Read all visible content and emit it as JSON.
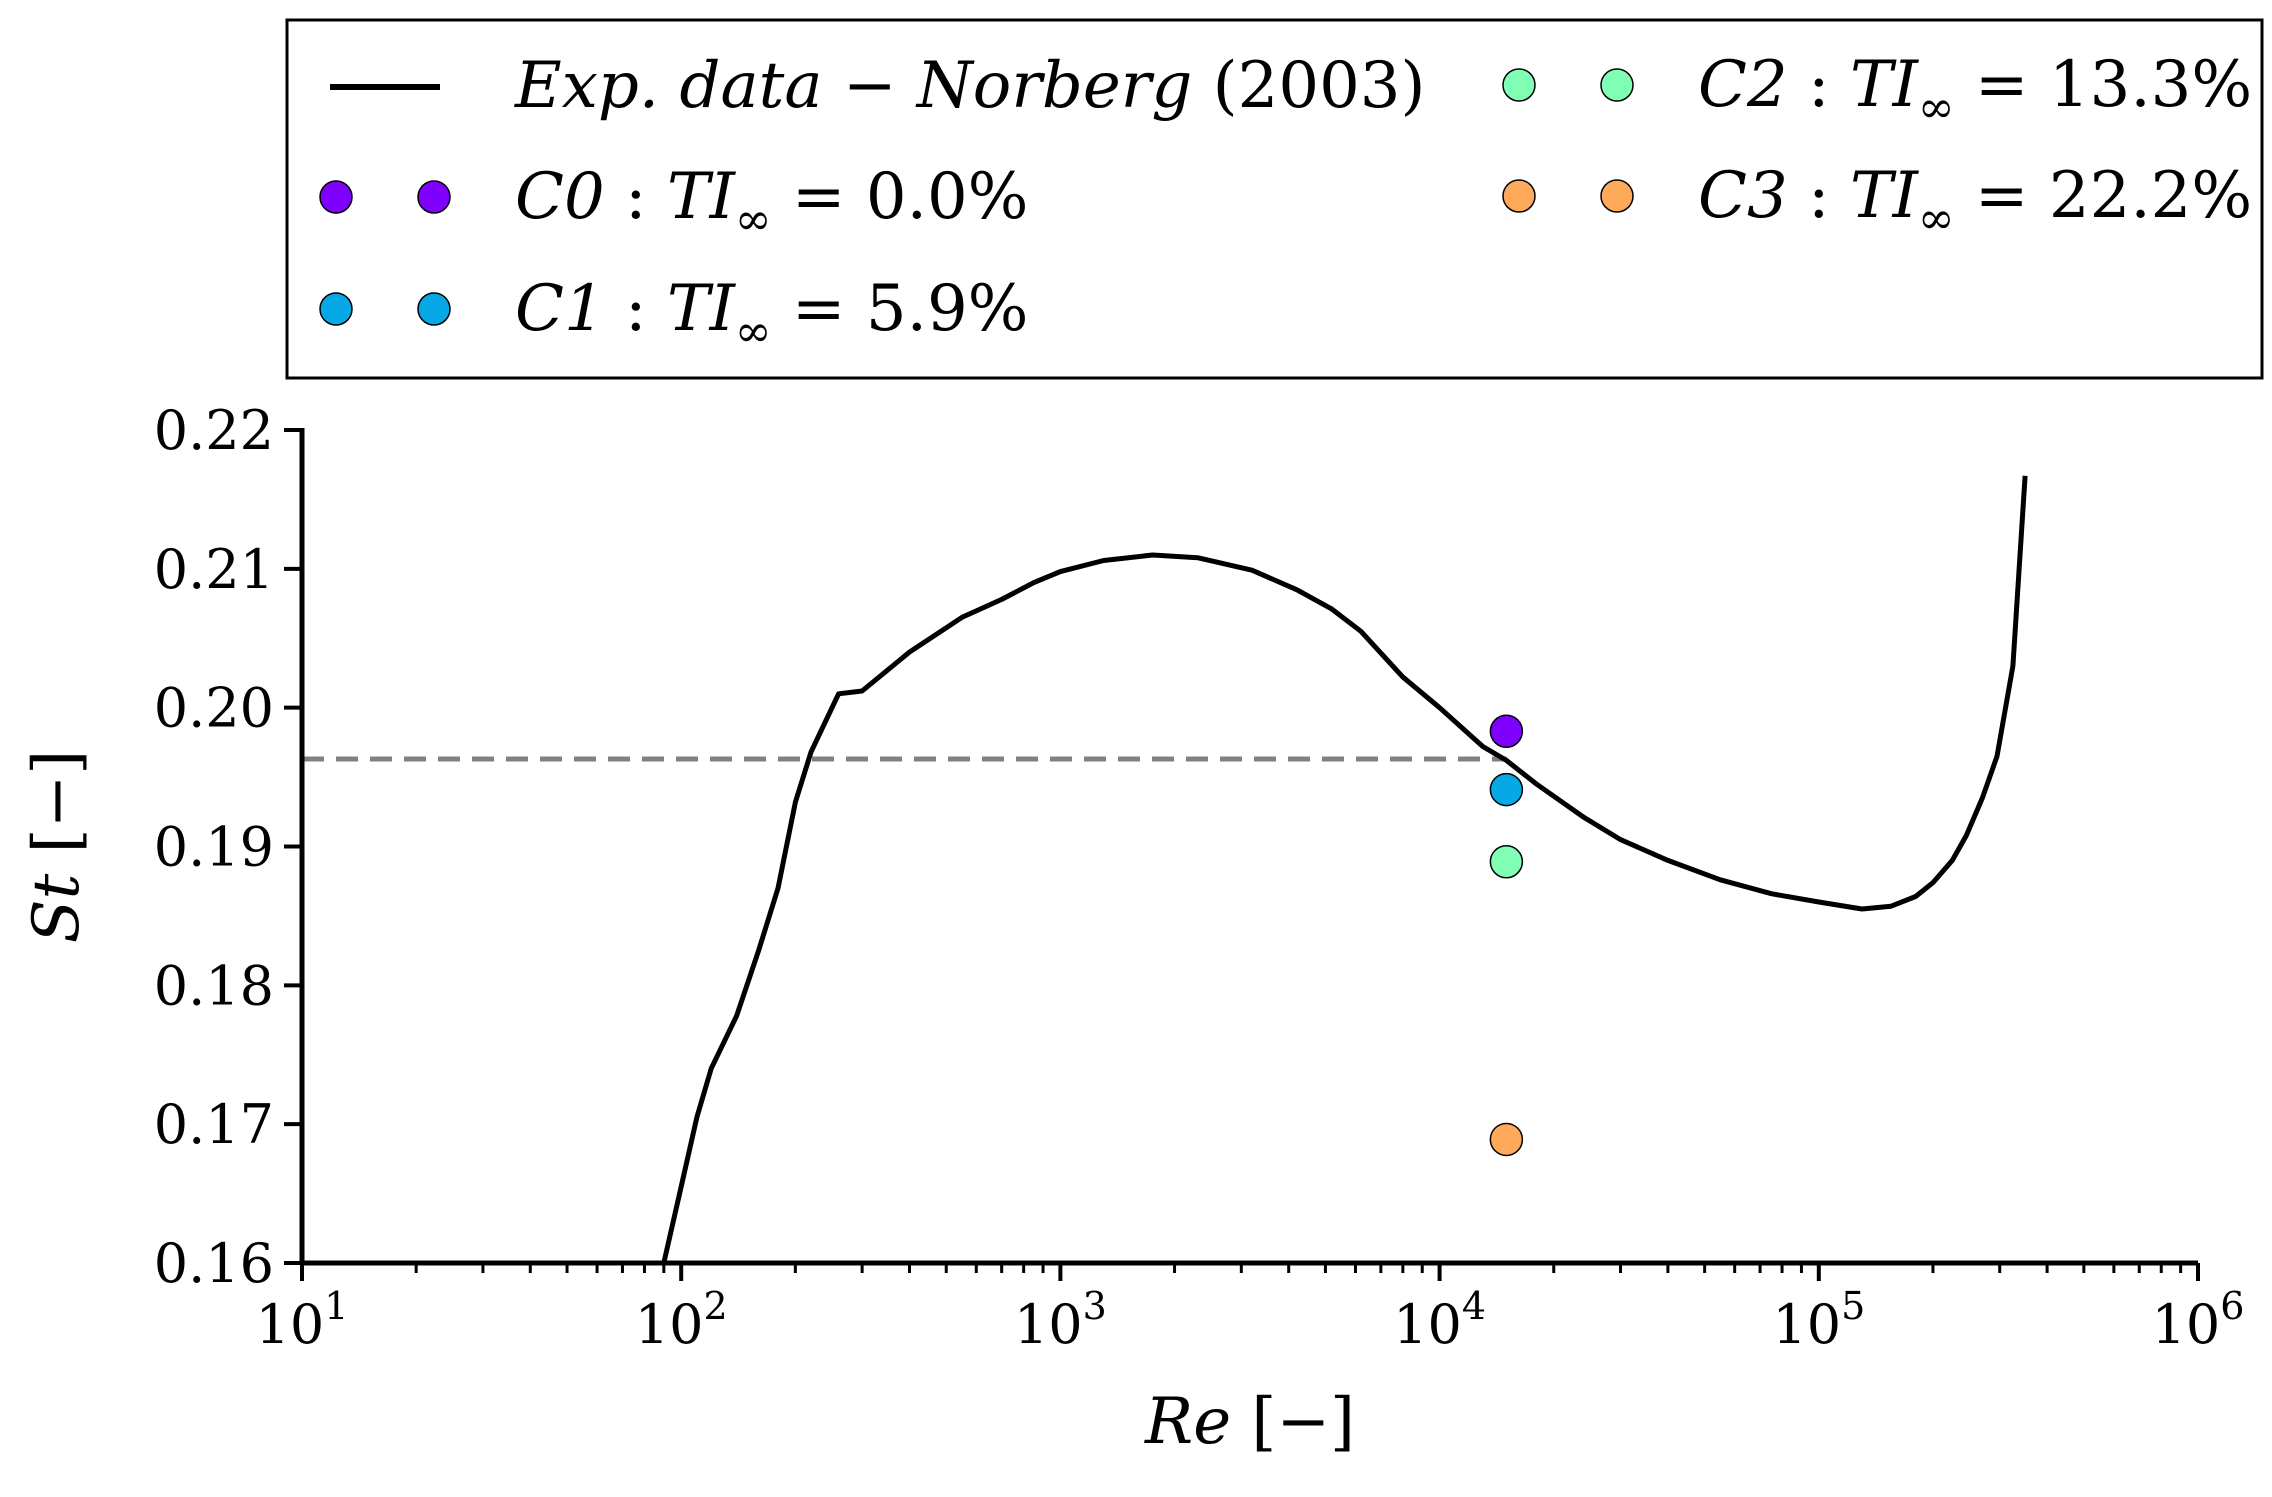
{
  "chart_data": {
    "type": "line",
    "title": "",
    "xlabel": "Re [−]",
    "ylabel": "St [−]",
    "xscale": "log",
    "xlim": [
      10,
      1000000
    ],
    "ylim": [
      0.16,
      0.22
    ],
    "yticks": [
      "0.16",
      "0.17",
      "0.18",
      "0.19",
      "0.20",
      "0.21",
      "0.22"
    ],
    "xticks": [
      {
        "value": 10,
        "base": "10",
        "exp": "1"
      },
      {
        "value": 100,
        "base": "10",
        "exp": "2"
      },
      {
        "value": 1000,
        "base": "10",
        "exp": "3"
      },
      {
        "value": 10000,
        "base": "10",
        "exp": "4"
      },
      {
        "value": 100000,
        "base": "10",
        "exp": "5"
      },
      {
        "value": 1000000,
        "base": "10",
        "exp": "6"
      }
    ],
    "reference_line": {
      "y": 0.1963,
      "x_end": 15000,
      "style": "dashed",
      "color": "#808080"
    },
    "series": [
      {
        "name": "Exp. data − Norberg (2003)",
        "kind": "line",
        "color": "#000000",
        "x": [
          90,
          100,
          110,
          120,
          140,
          160,
          180,
          200,
          220,
          260,
          300,
          400,
          550,
          700,
          850,
          1000,
          1300,
          1750,
          2300,
          3200,
          4200,
          5200,
          6200,
          8000,
          10000,
          13000,
          15000,
          18000,
          24000,
          30000,
          40000,
          55000,
          75000,
          100000,
          130000,
          155000,
          180000,
          200000,
          225000,
          245000,
          270000,
          295000,
          325000,
          350000
        ],
        "y": [
          0.16,
          0.1655,
          0.1705,
          0.174,
          0.1778,
          0.1825,
          0.187,
          0.1932,
          0.1968,
          0.201,
          0.2012,
          0.204,
          0.2065,
          0.2078,
          0.209,
          0.2098,
          0.2106,
          0.211,
          0.2108,
          0.2099,
          0.2085,
          0.2071,
          0.2055,
          0.2022,
          0.2,
          0.1972,
          0.1962,
          0.1945,
          0.1921,
          0.1905,
          0.189,
          0.1876,
          0.1866,
          0.186,
          0.1855,
          0.1857,
          0.1864,
          0.1874,
          0.189,
          0.1908,
          0.1935,
          0.1965,
          0.203,
          0.2167
        ]
      },
      {
        "name": "C0 : TI∞ = 0.0%",
        "kind": "marker",
        "label_case": "C0",
        "label_value": "0.0%",
        "color": "#7f00ff",
        "x": [
          15000
        ],
        "y": [
          0.1983
        ]
      },
      {
        "name": "C1 : TI∞ = 5.9%",
        "kind": "marker",
        "label_case": "C1",
        "label_value": "5.9%",
        "color": "#06a9e6",
        "x": [
          15000
        ],
        "y": [
          0.1941
        ]
      },
      {
        "name": "C2 : TI∞ = 13.3%",
        "kind": "marker",
        "label_case": "C2",
        "label_value": "13.3%",
        "color": "#80ffb4",
        "x": [
          15000
        ],
        "y": [
          0.1889
        ]
      },
      {
        "name": "C3 : TI∞ = 22.2%",
        "kind": "marker",
        "label_case": "C3",
        "label_value": "22.2%",
        "color": "#ffa95a",
        "x": [
          15000
        ],
        "y": [
          0.1689
        ]
      }
    ],
    "legend": {
      "placement": "above-plot",
      "line_entry": {
        "text_main": "Exp. data − Norberg",
        "text_year": "(2003)"
      },
      "ti_symbol": "TI",
      "ti_subscript": "∞",
      "separator": ":",
      "equals": "="
    }
  }
}
